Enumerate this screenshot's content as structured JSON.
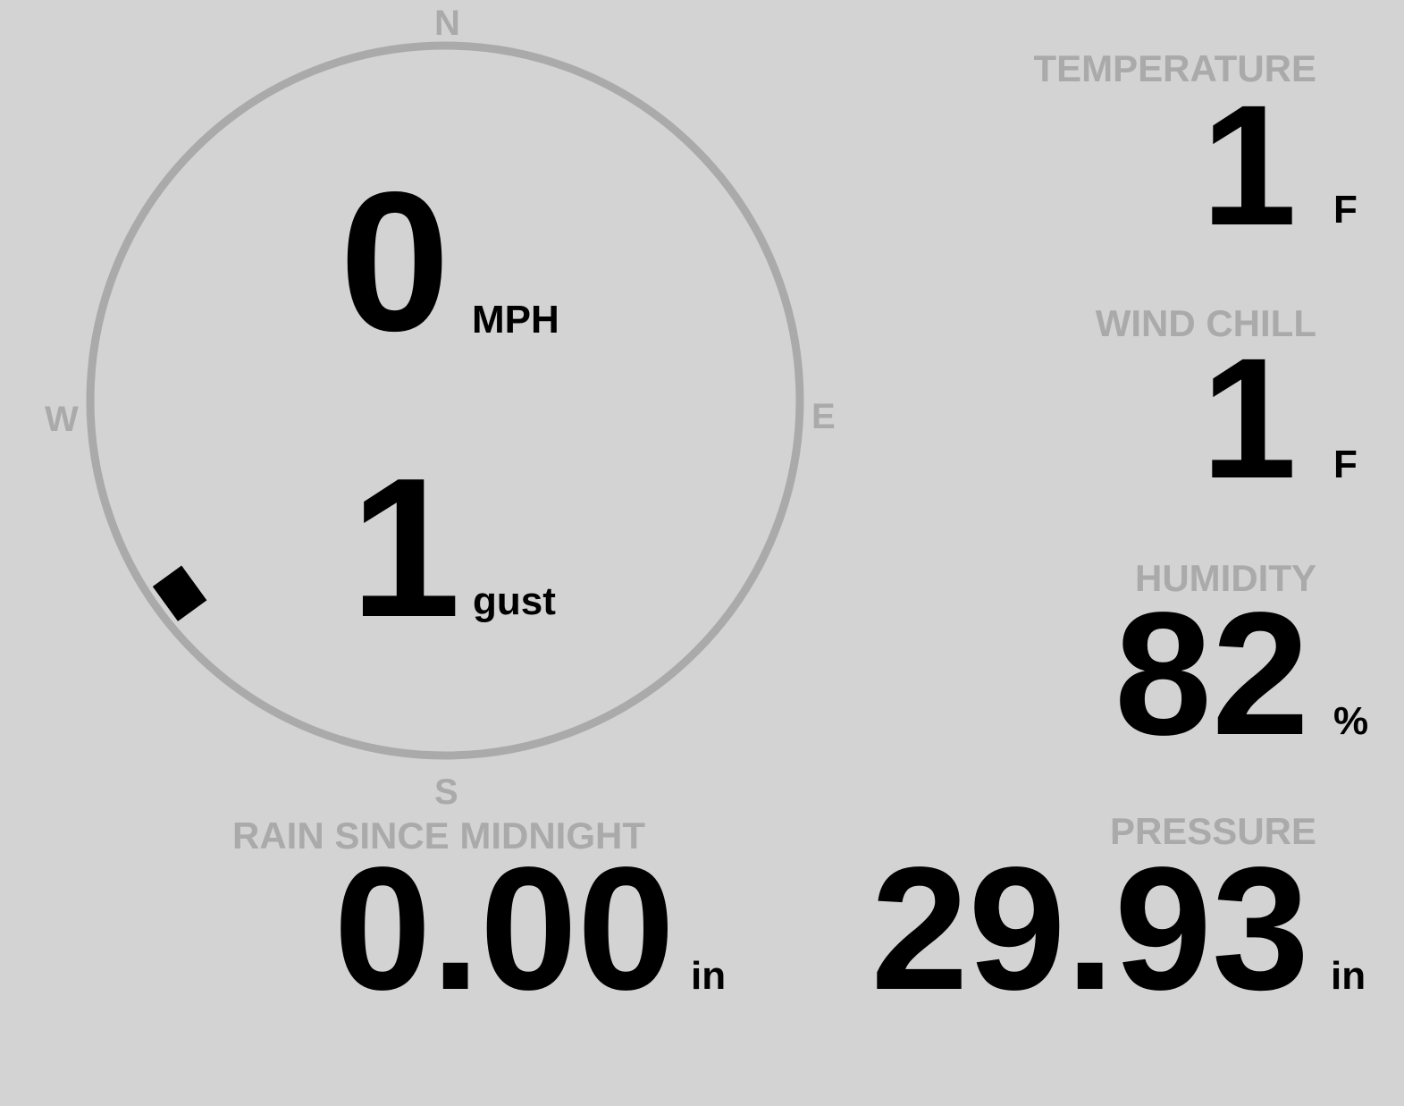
{
  "colors": {
    "background": "#d3d3d3",
    "label": "#aaaaaa",
    "value": "#000000",
    "ring": "#aaaaaa",
    "marker": "#000000"
  },
  "compass": {
    "north": "N",
    "east": "E",
    "south": "S",
    "west": "W",
    "wind_direction_deg": 234,
    "wind_speed": "0",
    "wind_speed_unit": "MPH",
    "gust": "1",
    "gust_unit": "gust"
  },
  "temperature": {
    "label": "TEMPERATURE",
    "value": "1",
    "unit": "F"
  },
  "wind_chill": {
    "label": "WIND CHILL",
    "value": "1",
    "unit": "F"
  },
  "humidity": {
    "label": "HUMIDITY",
    "value": "82",
    "unit": "%"
  },
  "pressure": {
    "label": "PRESSURE",
    "value": "29.93",
    "unit": "in"
  },
  "rain": {
    "label": "RAIN SINCE MIDNIGHT",
    "value": "0.00",
    "unit": "in"
  }
}
